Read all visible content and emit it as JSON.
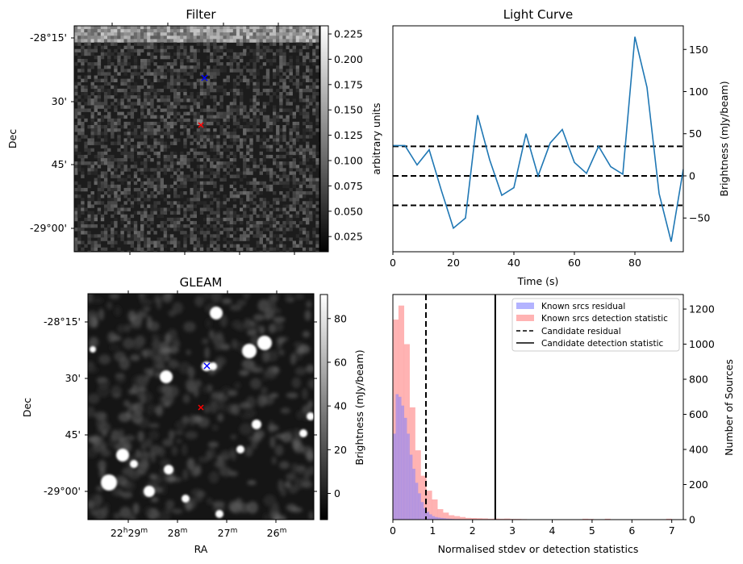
{
  "figure": {
    "panels": [
      "Filter",
      "Light Curve",
      "GLEAM",
      "Histogram"
    ]
  },
  "chart_data": [
    {
      "type": "heatmap",
      "title": "Filter",
      "xlabel": "",
      "ylabel": "Dec",
      "y_ticks": [
        "-28°15'",
        "30'",
        "45'",
        "-29°00'"
      ],
      "colorbar": {
        "label": "arbitrary units",
        "ticks": [
          "0.025",
          "0.050",
          "0.075",
          "0.100",
          "0.125",
          "0.150",
          "0.175",
          "0.200",
          "0.225"
        ],
        "range": [
          0.01,
          0.233
        ],
        "colormap": "gray"
      },
      "markers": [
        {
          "name": "blue-cross",
          "color": "#0000ff"
        },
        {
          "name": "red-cross",
          "color": "#ff0000"
        }
      ]
    },
    {
      "type": "line",
      "title": "Light Curve",
      "xlabel": "Time (s)",
      "ylabel": "Brightness (mJy/beam)",
      "xlim": [
        0,
        96
      ],
      "ylim": [
        -90,
        178
      ],
      "x_ticks": [
        "0",
        "20",
        "40",
        "60",
        "80"
      ],
      "y_ticks": [
        "−50",
        "0",
        "50",
        "100",
        "150"
      ],
      "y_tick_values": [
        -50,
        0,
        50,
        100,
        150
      ],
      "x_tick_values": [
        0,
        20,
        40,
        60,
        80
      ],
      "series": [
        {
          "name": "light-curve",
          "color": "#1f77b4",
          "x": [
            0,
            4,
            8,
            12,
            16,
            20,
            24,
            28,
            32,
            36,
            40,
            44,
            48,
            52,
            56,
            60,
            64,
            68,
            72,
            76,
            80,
            84,
            88,
            92,
            96
          ],
          "y": [
            36,
            36,
            13,
            31,
            -17,
            -62,
            -50,
            72,
            19,
            -23,
            -14,
            50,
            0,
            39,
            55,
            16,
            3,
            35,
            11,
            2,
            165,
            105,
            -21,
            -78,
            8
          ]
        }
      ],
      "hlines": [
        {
          "y": 35,
          "style": "dashed",
          "color": "#000000"
        },
        {
          "y": 0,
          "style": "dashed",
          "color": "#000000"
        },
        {
          "y": -35,
          "style": "dashed",
          "color": "#000000"
        }
      ]
    },
    {
      "type": "heatmap",
      "title": "GLEAM",
      "xlabel": "RA",
      "ylabel": "Dec",
      "x_ticks": [
        {
          "main": "22",
          "sup1": "h",
          "main2": "29",
          "sup2": "m"
        },
        {
          "main": "",
          "sup1": "",
          "main2": "28",
          "sup2": "m"
        },
        {
          "main": "",
          "sup1": "",
          "main2": "27",
          "sup2": "m"
        },
        {
          "main": "",
          "sup1": "",
          "main2": "26",
          "sup2": "m"
        }
      ],
      "y_ticks": [
        "-28°15'",
        "30'",
        "45'",
        "-29°00'"
      ],
      "colorbar": {
        "label": "Brightness (mJy/beam)",
        "ticks": [
          "0",
          "20",
          "40",
          "60",
          "80"
        ],
        "range": [
          -12,
          91
        ],
        "colormap": "gray"
      },
      "markers": [
        {
          "name": "blue-cross",
          "color": "#0000ff"
        },
        {
          "name": "red-cross",
          "color": "#ff0000"
        }
      ]
    },
    {
      "type": "bar",
      "title": "",
      "xlabel": "Normalised stdev or detection statistics",
      "ylabel": "Number of Sources",
      "xlim": [
        0,
        7.29
      ],
      "ylim": [
        0,
        1283
      ],
      "x_ticks": [
        "0",
        "1",
        "2",
        "3",
        "4",
        "5",
        "6",
        "7"
      ],
      "x_tick_values": [
        0,
        1,
        2,
        3,
        4,
        5,
        6,
        7
      ],
      "y_ticks": [
        "0",
        "200",
        "400",
        "600",
        "800",
        "1000",
        "1200"
      ],
      "y_tick_values": [
        0,
        200,
        400,
        600,
        800,
        1000,
        1200
      ],
      "series": [
        {
          "name": "Known srcs detection statistic",
          "color": "#ff9999",
          "opacity": 0.75,
          "bin_width": 0.14,
          "bin_start": 0.0,
          "values": [
            1140,
            1220,
            1000,
            640,
            395,
            250,
            165,
            115,
            60,
            40,
            25,
            20,
            15,
            10,
            9,
            8,
            7,
            5,
            6,
            5,
            6,
            4,
            4,
            3,
            2,
            1,
            1,
            1,
            1,
            1,
            1,
            1,
            1,
            1,
            5,
            4,
            1,
            1,
            5,
            2,
            1,
            1,
            1,
            1,
            1,
            1,
            1,
            1,
            1,
            5,
            1,
            1
          ]
        },
        {
          "name": "Known srcs residual",
          "color": "#8080ff",
          "opacity": 0.55,
          "bin_width": 0.07,
          "bin_start": 0.0,
          "values": [
            490,
            715,
            700,
            650,
            580,
            490,
            370,
            290,
            210,
            150,
            100,
            65,
            45,
            30,
            20,
            15,
            12,
            10,
            8,
            6,
            5,
            4,
            3,
            3,
            2,
            2,
            1,
            1,
            1,
            1
          ]
        }
      ],
      "vlines": [
        {
          "name": "Candidate residual",
          "x": 0.83,
          "style": "dashed",
          "color": "#000000"
        },
        {
          "name": "Candidate detection statistic",
          "x": 2.57,
          "style": "solid",
          "color": "#000000"
        }
      ],
      "legend": {
        "position": "top-right",
        "entries": [
          {
            "label": "Known srcs residual",
            "kind": "patch",
            "color": "#b3b3ff"
          },
          {
            "label": "Known srcs detection statistic",
            "kind": "patch",
            "color": "#ffb3b3"
          },
          {
            "label": "Candidate residual",
            "kind": "dashed",
            "color": "#000000"
          },
          {
            "label": "Candidate detection statistic",
            "kind": "solid",
            "color": "#000000"
          }
        ]
      }
    }
  ]
}
